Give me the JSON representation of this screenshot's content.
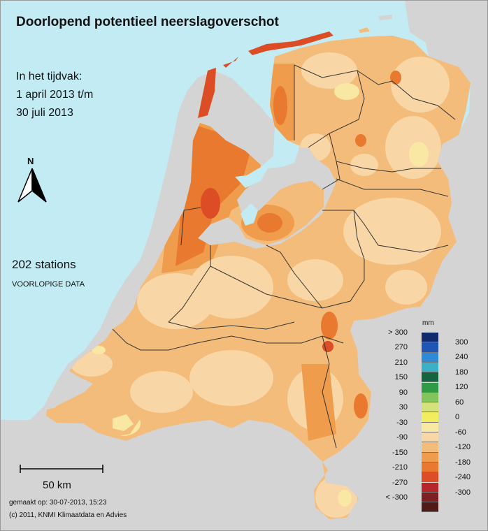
{
  "title": "Doorlopend potentieel neerslagoverschot",
  "period": {
    "line1": "In het tijdvak:",
    "line2": "1 april 2013 t/m",
    "line3": "30 juli 2013"
  },
  "north_label": "N",
  "stations": "202 stations",
  "preliminary": "VOORLOPIGE DATA",
  "scale_bar_label": "50 km",
  "made_on": "gemaakt op: 30-07-2013, 15:23",
  "copyright": "(c) 2011, KNMI Klimaatdata en Advies",
  "legend": {
    "unit": "mm",
    "left_labels": [
      "> 300",
      "270",
      "210",
      "150",
      "90",
      "30",
      "-30",
      "-90",
      "-150",
      "-210",
      "-270",
      "< -300"
    ],
    "right_labels": [
      "300",
      "240",
      "180",
      "120",
      "60",
      "0",
      "-60",
      "-120",
      "-180",
      "-240",
      "-300"
    ],
    "colors": [
      "#112a6b",
      "#1f55b4",
      "#2e8ad6",
      "#3bb1c8",
      "#14653f",
      "#2f9a47",
      "#82c55c",
      "#d3e27b",
      "#f3ed5e",
      "#f9e8a4",
      "#f8d6a6",
      "#f4bc7b",
      "#ef9d4c",
      "#e8792f",
      "#dc4d25",
      "#b8262b",
      "#7c2024",
      "#4f1a17"
    ]
  },
  "colors": {
    "sea": "#c3ebf3",
    "land_outside": "#d4d4d4",
    "class_minus60": "#f9e8a4",
    "class_minus90": "#f8d6a6",
    "class_minus120": "#f4bc7b",
    "class_minus150": "#ef9d4c",
    "class_minus180": "#e8792f",
    "class_minus210": "#dc4d25"
  }
}
